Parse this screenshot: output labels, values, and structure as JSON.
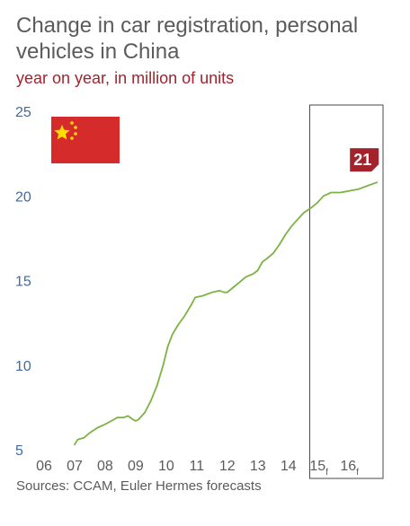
{
  "chart_data": {
    "type": "line",
    "title": "Change in car registration, personal vehicles in China",
    "subtitle": "year on year, in million of units",
    "source": "Sources: CCAM, Euler Hermes forecasts",
    "xlabel": "",
    "ylabel": "",
    "ylim": [
      5,
      25
    ],
    "xlim": [
      2006,
      2017.1
    ],
    "yticks": [
      "5",
      "10",
      "15",
      "20",
      "25"
    ],
    "xticks": [
      {
        "label": "06",
        "x": 2006.0,
        "sub": ""
      },
      {
        "label": "07",
        "x": 2007.0,
        "sub": ""
      },
      {
        "label": "08",
        "x": 2008.0,
        "sub": ""
      },
      {
        "label": "09",
        "x": 2009.0,
        "sub": ""
      },
      {
        "label": "10",
        "x": 2010.0,
        "sub": ""
      },
      {
        "label": "11",
        "x": 2011.0,
        "sub": ""
      },
      {
        "label": "12",
        "x": 2012.0,
        "sub": ""
      },
      {
        "label": "13",
        "x": 2013.0,
        "sub": ""
      },
      {
        "label": "14",
        "x": 2014.0,
        "sub": ""
      },
      {
        "label": "15",
        "x": 2015.0,
        "sub": "f"
      },
      {
        "label": "16",
        "x": 2016.0,
        "sub": "f"
      }
    ],
    "forecast_start": 2014.7,
    "forecast_end": 2017.1,
    "series": [
      {
        "color": "#7cb342",
        "points": [
          [
            2007.0,
            5.3
          ],
          [
            2007.1,
            5.6
          ],
          [
            2007.3,
            5.7
          ],
          [
            2007.5,
            6.0
          ],
          [
            2007.75,
            6.3
          ],
          [
            2008.0,
            6.5
          ],
          [
            2008.2,
            6.7
          ],
          [
            2008.4,
            6.9
          ],
          [
            2008.6,
            6.9
          ],
          [
            2008.75,
            7.0
          ],
          [
            2008.9,
            6.8
          ],
          [
            2009.0,
            6.7
          ],
          [
            2009.1,
            6.8
          ],
          [
            2009.3,
            7.2
          ],
          [
            2009.5,
            7.9
          ],
          [
            2009.7,
            8.8
          ],
          [
            2009.9,
            10.0
          ],
          [
            2010.05,
            11.1
          ],
          [
            2010.2,
            11.8
          ],
          [
            2010.4,
            12.4
          ],
          [
            2010.6,
            12.9
          ],
          [
            2010.8,
            13.5
          ],
          [
            2010.95,
            14.0
          ],
          [
            2011.2,
            14.1
          ],
          [
            2011.5,
            14.3
          ],
          [
            2011.75,
            14.4
          ],
          [
            2011.9,
            14.3
          ],
          [
            2012.0,
            14.3
          ],
          [
            2012.2,
            14.6
          ],
          [
            2012.4,
            14.9
          ],
          [
            2012.6,
            15.2
          ],
          [
            2012.85,
            15.4
          ],
          [
            2013.0,
            15.6
          ],
          [
            2013.15,
            16.1
          ],
          [
            2013.3,
            16.3
          ],
          [
            2013.5,
            16.6
          ],
          [
            2013.7,
            17.1
          ],
          [
            2013.9,
            17.7
          ],
          [
            2014.1,
            18.2
          ],
          [
            2014.3,
            18.6
          ],
          [
            2014.5,
            19.0
          ],
          [
            2014.75,
            19.3
          ],
          [
            2014.95,
            19.6
          ],
          [
            2015.15,
            20.0
          ],
          [
            2015.4,
            20.2
          ],
          [
            2015.7,
            20.2
          ],
          [
            2016.0,
            20.3
          ],
          [
            2016.3,
            20.4
          ],
          [
            2016.6,
            20.6
          ],
          [
            2016.9,
            20.8
          ]
        ]
      }
    ],
    "callout": {
      "text": "21",
      "color": "#a3232d"
    },
    "flag": {
      "name": "china-flag",
      "red": "#d62b2b",
      "star": "#ffde00"
    }
  }
}
